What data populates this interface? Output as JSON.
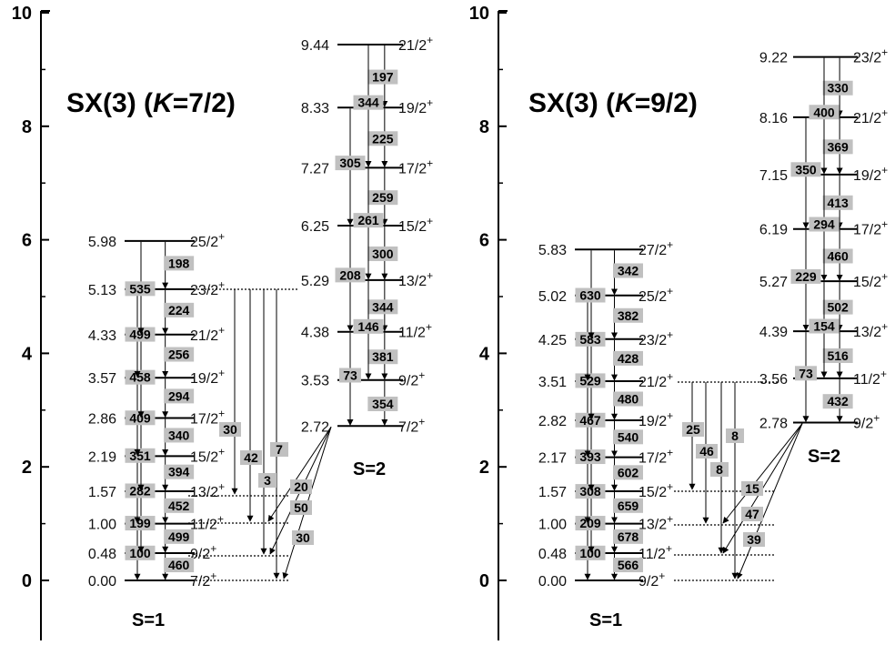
{
  "panels": [
    {
      "title_prefix": "SX(3) (",
      "title_k": "K",
      "title_suffix": "=7/2)",
      "y_ticks": [
        "10",
        "8",
        "6",
        "4",
        "2",
        "0"
      ],
      "band_labels": [
        "S=1",
        "S=2"
      ],
      "s1_levels": [
        {
          "e": "0.00",
          "j": "7/2",
          "p": "+"
        },
        {
          "e": "0.48",
          "j": "9/2",
          "p": "+"
        },
        {
          "e": "1.00",
          "j": "11/2",
          "p": "+"
        },
        {
          "e": "1.57",
          "j": "13/2",
          "p": "+"
        },
        {
          "e": "2.19",
          "j": "15/2",
          "p": "+"
        },
        {
          "e": "2.86",
          "j": "17/2",
          "p": "+"
        },
        {
          "e": "3.57",
          "j": "19/2",
          "p": "+"
        },
        {
          "e": "4.33",
          "j": "21/2",
          "p": "+"
        },
        {
          "e": "5.13",
          "j": "23/2",
          "p": "+"
        },
        {
          "e": "5.98",
          "j": "25/2",
          "p": "+"
        }
      ],
      "s2_levels": [
        {
          "e": "2.72",
          "j": "7/2",
          "p": "+"
        },
        {
          "e": "3.53",
          "j": "9/2",
          "p": "+"
        },
        {
          "e": "4.38",
          "j": "11/2",
          "p": "+"
        },
        {
          "e": "5.29",
          "j": "13/2",
          "p": "+"
        },
        {
          "e": "6.25",
          "j": "15/2",
          "p": "+"
        },
        {
          "e": "7.27",
          "j": "17/2",
          "p": "+"
        },
        {
          "e": "8.33",
          "j": "19/2",
          "p": "+"
        },
        {
          "e": "9.44",
          "j": "21/2",
          "p": "+"
        }
      ],
      "s1_dj1": [
        "460",
        "499",
        "452",
        "394",
        "340",
        "294",
        "256",
        "224",
        "198"
      ],
      "s1_dj2": [
        "100",
        "199",
        "282",
        "351",
        "409",
        "458",
        "499",
        "535"
      ],
      "s2_dj1": [
        "354",
        "381",
        "344",
        "300",
        "259",
        "225",
        "197"
      ],
      "s2_dj2": [
        "73",
        "146",
        "208",
        "261",
        "305",
        "344"
      ],
      "interband": [
        "30",
        "42",
        "7",
        "3",
        "20",
        "50",
        "30"
      ]
    },
    {
      "title_prefix": "SX(3) (",
      "title_k": "K",
      "title_suffix": "=9/2)",
      "y_ticks": [
        "10",
        "8",
        "6",
        "4",
        "2",
        "0"
      ],
      "band_labels": [
        "S=1",
        "S=2"
      ],
      "s1_levels": [
        {
          "e": "0.00",
          "j": "9/2",
          "p": "+"
        },
        {
          "e": "0.48",
          "j": "11/2",
          "p": "+"
        },
        {
          "e": "1.00",
          "j": "13/2",
          "p": "+"
        },
        {
          "e": "1.57",
          "j": "15/2",
          "p": "+"
        },
        {
          "e": "2.17",
          "j": "17/2",
          "p": "+"
        },
        {
          "e": "2.82",
          "j": "19/2",
          "p": "+"
        },
        {
          "e": "3.51",
          "j": "21/2",
          "p": "+"
        },
        {
          "e": "4.25",
          "j": "23/2",
          "p": "+"
        },
        {
          "e": "5.02",
          "j": "25/2",
          "p": "+"
        },
        {
          "e": "5.83",
          "j": "27/2",
          "p": "+"
        }
      ],
      "s2_levels": [
        {
          "e": "2.78",
          "j": "9/2",
          "p": "+"
        },
        {
          "e": "3.56",
          "j": "11/2",
          "p": "+"
        },
        {
          "e": "4.39",
          "j": "13/2",
          "p": "+"
        },
        {
          "e": "5.27",
          "j": "15/2",
          "p": "+"
        },
        {
          "e": "6.19",
          "j": "17/2",
          "p": "+"
        },
        {
          "e": "7.15",
          "j": "19/2",
          "p": "+"
        },
        {
          "e": "8.16",
          "j": "21/2",
          "p": "+"
        },
        {
          "e": "9.22",
          "j": "23/2",
          "p": "+"
        }
      ],
      "s1_dj1": [
        "566",
        "678",
        "659",
        "602",
        "540",
        "480",
        "428",
        "382",
        "342"
      ],
      "s1_dj2": [
        "100",
        "209",
        "308",
        "393",
        "467",
        "529",
        "583",
        "630"
      ],
      "s2_dj1": [
        "432",
        "516",
        "502",
        "460",
        "413",
        "369",
        "330"
      ],
      "s2_dj2": [
        "73",
        "154",
        "229",
        "294",
        "350",
        "400"
      ],
      "interband": [
        "25",
        "46",
        "8",
        "8",
        "15",
        "47",
        "39"
      ]
    }
  ]
}
